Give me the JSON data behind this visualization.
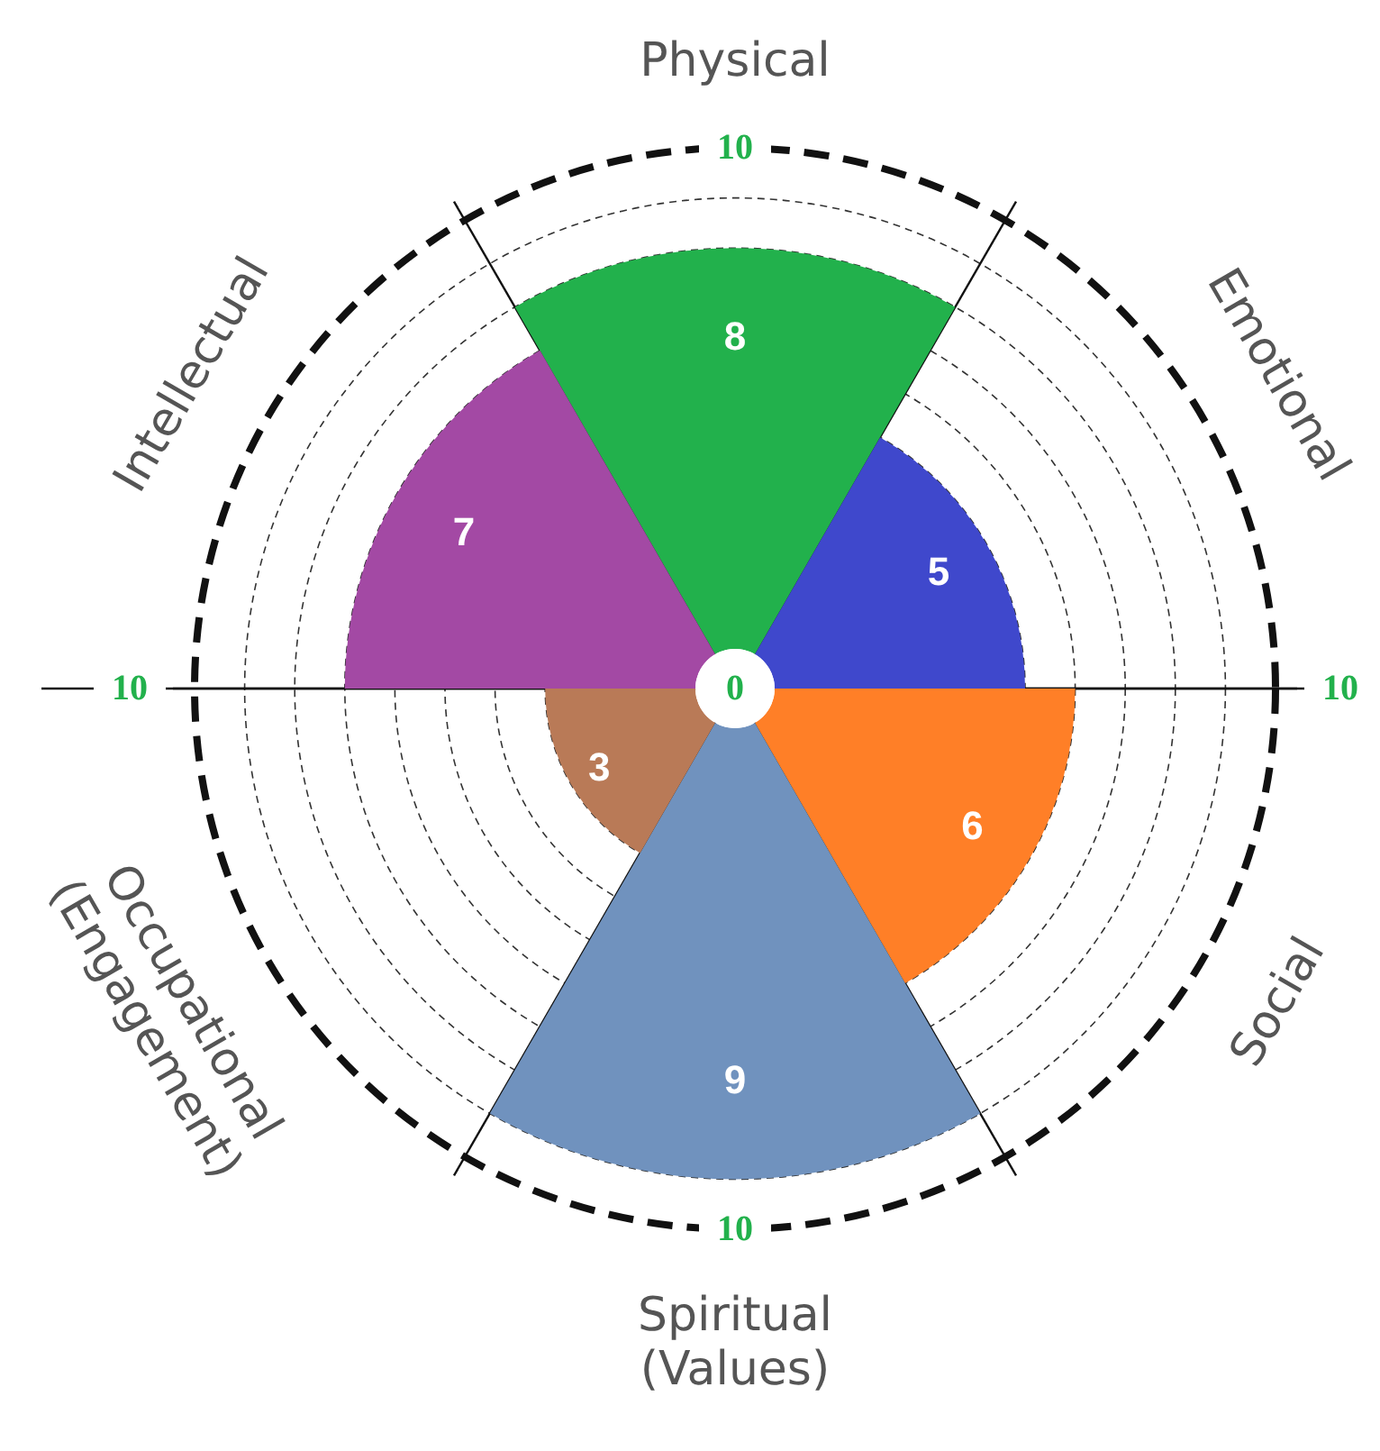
{
  "chart_data": {
    "type": "other",
    "categories": [
      "Physical",
      "Emotional",
      "Social",
      "Spiritual\n(Values)",
      "Occupational\n(Engagement)",
      "Intellectual"
    ],
    "values": [
      8,
      5,
      6,
      9,
      3,
      7
    ],
    "colors": [
      "#22b14c",
      "#3f48cc",
      "#ff7f27",
      "#7092be",
      "#b97a57",
      "#a349a4"
    ],
    "annotations": [
      "10",
      "10",
      "10",
      "10",
      "0"
    ],
    "data_labels": true
  }
}
